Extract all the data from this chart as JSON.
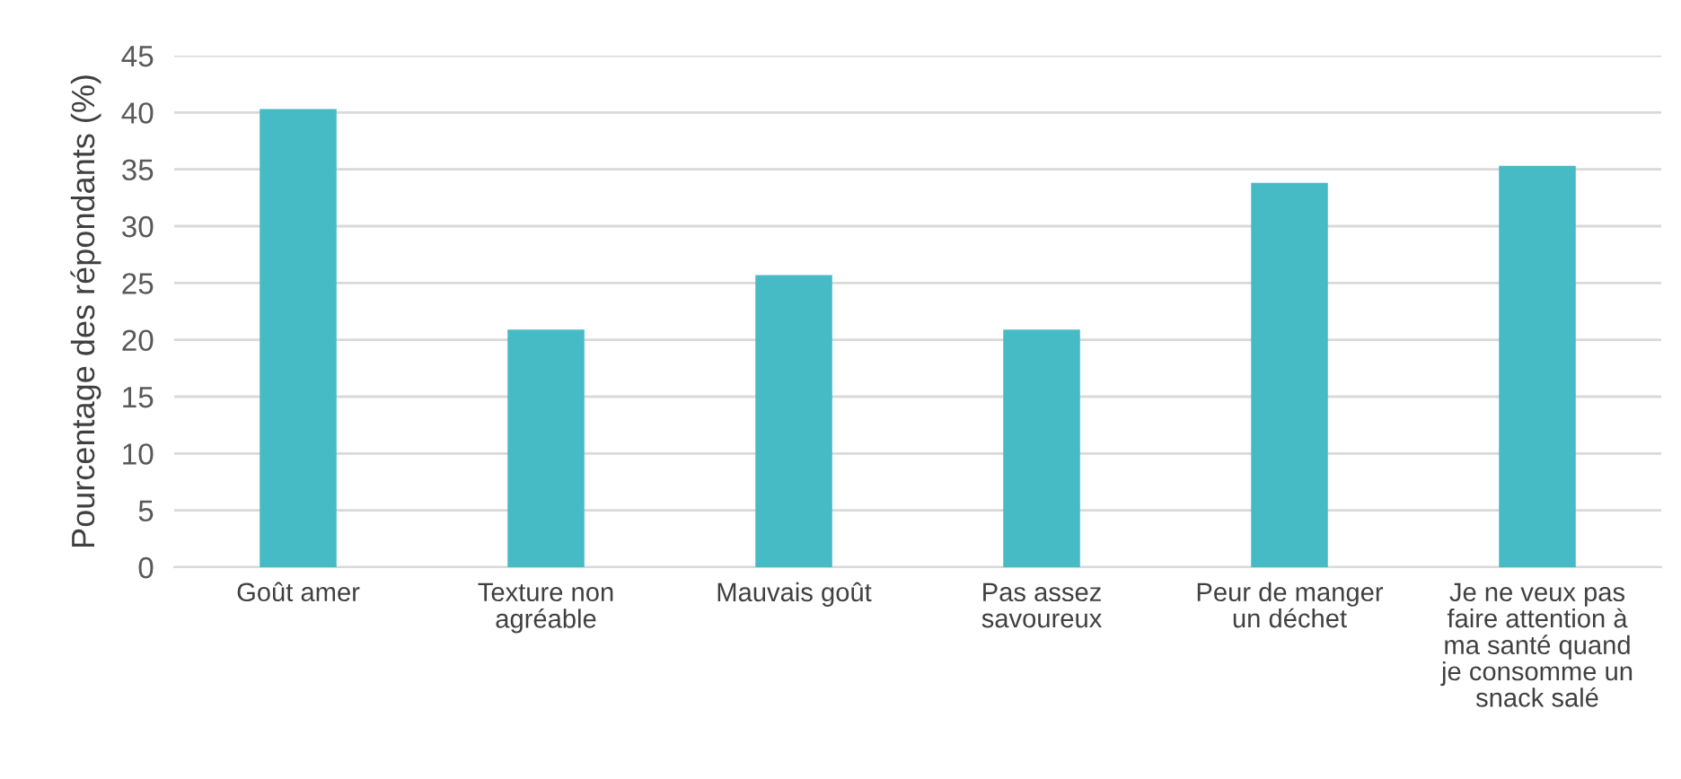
{
  "chart_data": {
    "type": "bar",
    "ylabel": "Pourcentage des répondants (%)",
    "categories": [
      "Goût amer",
      "Texture non\nagréable",
      "Mauvais goût",
      "Pas assez\nsavoureux",
      "Peur de manger\nun déchet",
      "Je ne veux pas\nfaire attention à\nma santé quand\nje consomme un\nsnack salé"
    ],
    "values": [
      40.3,
      20.9,
      25.7,
      20.9,
      33.8,
      35.3
    ],
    "color": "#47bbc5",
    "ylim": [
      0,
      45
    ],
    "yticks": [
      0,
      5,
      10,
      15,
      20,
      25,
      30,
      35,
      40,
      45
    ],
    "grid": "y"
  }
}
